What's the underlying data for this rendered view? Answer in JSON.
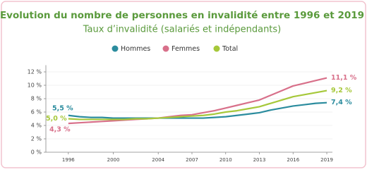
{
  "chart_data": {
    "type": "line",
    "title": "Evolution du nombre de personnes en invalidité entre 1996 et 2019",
    "subtitle": "Taux d’invalidité (salariés et indépendants)",
    "x": [
      1996,
      1997,
      1998,
      1999,
      2000,
      2001,
      2002,
      2003,
      2004,
      2005,
      2006,
      2007,
      2008,
      2009,
      2010,
      2011,
      2012,
      2013,
      2014,
      2015,
      2016,
      2017,
      2018,
      2019
    ],
    "series": [
      {
        "name": "Hommes",
        "color": "#2b8c9e",
        "values": [
          5.5,
          5.3,
          5.2,
          5.2,
          5.1,
          5.1,
          5.1,
          5.1,
          5.1,
          5.1,
          5.1,
          5.1,
          5.1,
          5.2,
          5.3,
          5.5,
          5.7,
          5.9,
          6.3,
          6.6,
          6.9,
          7.1,
          7.3,
          7.4
        ],
        "value_labels": [
          "5,5 %",
          null,
          null,
          null,
          null,
          null,
          null,
          null,
          null,
          null,
          null,
          null,
          null,
          null,
          null,
          null,
          null,
          null,
          null,
          null,
          null,
          null,
          null,
          "7,4 %"
        ]
      },
      {
        "name": "Femmes",
        "color": "#d8708a",
        "values": [
          4.3,
          4.4,
          4.5,
          4.6,
          4.7,
          4.8,
          4.9,
          5.0,
          5.1,
          5.3,
          5.5,
          5.6,
          5.9,
          6.2,
          6.6,
          7.0,
          7.4,
          7.8,
          8.5,
          9.2,
          9.9,
          10.3,
          10.7,
          11.1
        ],
        "value_labels": [
          "4,3 %",
          null,
          null,
          null,
          null,
          null,
          null,
          null,
          null,
          null,
          null,
          null,
          null,
          null,
          null,
          null,
          null,
          null,
          null,
          null,
          null,
          null,
          null,
          "11,1 %"
        ]
      },
      {
        "name": "Total",
        "color": "#a6c83a",
        "values": [
          5.0,
          4.9,
          4.9,
          4.9,
          4.9,
          4.9,
          5.0,
          5.0,
          5.1,
          5.2,
          5.3,
          5.4,
          5.5,
          5.7,
          6.0,
          6.2,
          6.5,
          6.8,
          7.3,
          7.8,
          8.3,
          8.6,
          8.9,
          9.2
        ],
        "value_labels": [
          "5,0 %",
          null,
          null,
          null,
          null,
          null,
          null,
          null,
          null,
          null,
          null,
          null,
          null,
          null,
          null,
          null,
          null,
          null,
          null,
          null,
          null,
          null,
          null,
          "9,2 %"
        ]
      }
    ],
    "xlim": [
      1994,
      2019.5
    ],
    "xticks": [
      1996,
      2000,
      2004,
      2007,
      2010,
      2013,
      2016,
      2019
    ],
    "ylim": [
      0,
      13
    ],
    "yticks": [
      {
        "value": 0,
        "label": "0 %"
      },
      {
        "value": 2,
        "label": "2 %"
      },
      {
        "value": 4,
        "label": "4 %"
      },
      {
        "value": 6,
        "label": "6 %"
      },
      {
        "value": 8,
        "label": "8 %"
      },
      {
        "value": 10,
        "label": "10 %"
      },
      {
        "value": 12,
        "label": "12 %"
      }
    ],
    "grid": true,
    "legend": "top"
  }
}
